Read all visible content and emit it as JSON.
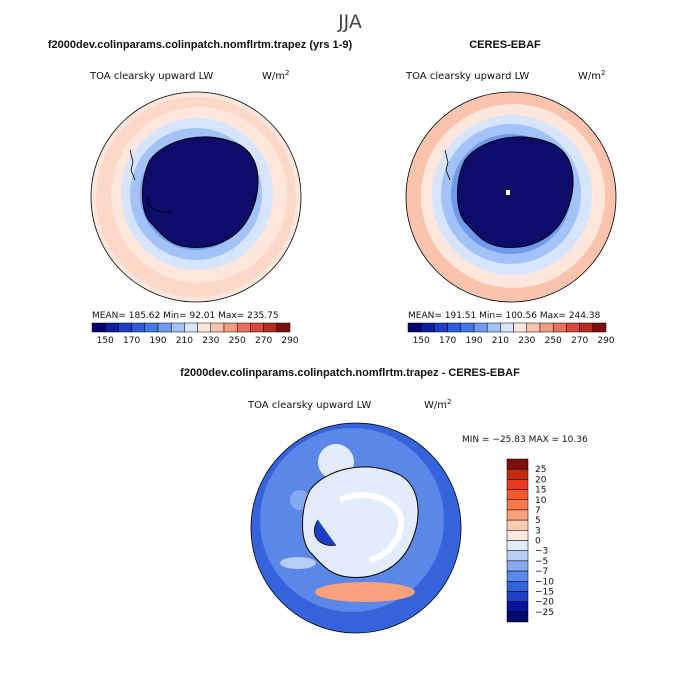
{
  "title": "JJA",
  "panels": [
    {
      "header": "f2000dev.colinparams.colinpatch.nomflrtm.trapez (yrs 1-9)",
      "variable": "TOA clearsky upward LW",
      "units": "W/m",
      "units_exp": "2",
      "stats_text": "MEAN= 185.62   Min=   92.01   Max= 235.75",
      "colorbar_labels": [
        "150",
        "170",
        "190",
        "210",
        "230",
        "250",
        "270",
        "290"
      ]
    },
    {
      "header": "CERES-EBAF",
      "variable": "TOA clearsky upward LW",
      "units": "W/m",
      "units_exp": "2",
      "stats_text": "MEAN= 191.51   Min= 100.56   Max= 244.38",
      "colorbar_labels": [
        "150",
        "170",
        "190",
        "210",
        "230",
        "250",
        "270",
        "290"
      ]
    },
    {
      "header": "f2000dev.colinparams.colinpatch.nomflrtm.trapez - CERES-EBAF",
      "variable": "TOA clearsky upward LW",
      "units": "W/m",
      "units_exp": "2",
      "stats_text": "MIN = −25.83 MAX =  10.36",
      "colorbar_labels": [
        "25",
        "20",
        "15",
        "10",
        "7",
        "5",
        "3",
        "0",
        "−3",
        "−5",
        "−7",
        "−10",
        "−15",
        "−20",
        "−25"
      ]
    }
  ],
  "colors": {
    "abs_scale": [
      "#08006e",
      "#0a1e9e",
      "#1d3fc7",
      "#2f5ad8",
      "#4678e6",
      "#6f9af0",
      "#a3c2f7",
      "#d6e5fb",
      "#fde6dc",
      "#f9c3ad",
      "#f29c82",
      "#e8705a",
      "#d9483a",
      "#b82b22",
      "#7d0f0f"
    ],
    "diff_scale": [
      "#7d0f0f",
      "#c22a12",
      "#e83b1d",
      "#f25a2a",
      "#f6794b",
      "#f9a07c",
      "#fcc9b1",
      "#fde9df",
      "#e3ecfb",
      "#b6cdf6",
      "#86aaf0",
      "#5b87e8",
      "#3563dc",
      "#1c3fc6",
      "#08129a",
      "#050a6b"
    ],
    "land_fill": "#0c0c6b",
    "coast": "#000000"
  },
  "chart_data": [
    {
      "type": "heatmap",
      "title": "TOA clearsky upward LW",
      "subtitle": "f2000dev.colinparams.colinpatch.nomflrtm.trapez (yrs 1-9)",
      "units": "W/m^2",
      "mean": 185.62,
      "min": 92.01,
      "max": 235.75,
      "levels": [
        150,
        170,
        190,
        210,
        230,
        250,
        270,
        290
      ]
    },
    {
      "type": "heatmap",
      "title": "TOA clearsky upward LW",
      "subtitle": "CERES-EBAF",
      "units": "W/m^2",
      "mean": 191.51,
      "min": 100.56,
      "max": 244.38,
      "levels": [
        150,
        170,
        190,
        210,
        230,
        250,
        270,
        290
      ]
    },
    {
      "type": "heatmap",
      "title": "TOA clearsky upward LW",
      "subtitle": "f2000dev.colinparams.colinpatch.nomflrtm.trapez - CERES-EBAF",
      "units": "W/m^2",
      "min": -25.83,
      "max": 10.36,
      "levels": [
        -25,
        -20,
        -15,
        -10,
        -7,
        -5,
        -3,
        0,
        3,
        5,
        7,
        10,
        15,
        20,
        25
      ]
    }
  ]
}
